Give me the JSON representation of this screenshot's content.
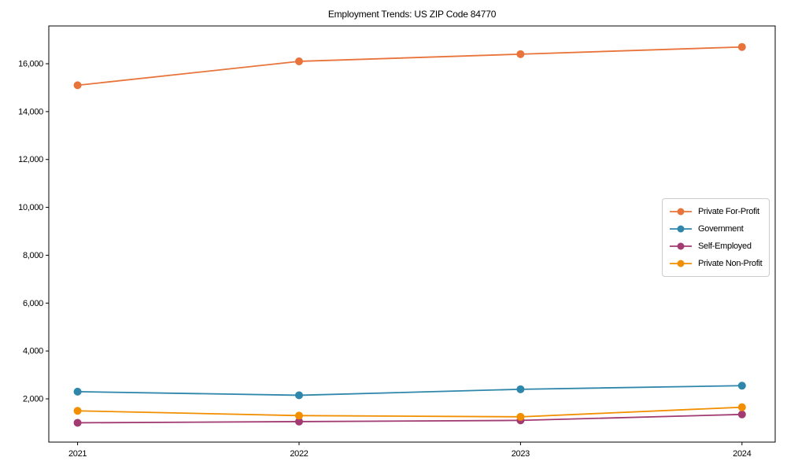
{
  "chart_data": {
    "type": "line",
    "title": "Employment Trends: US ZIP Code 84770",
    "x": [
      2021,
      2022,
      2023,
      2024
    ],
    "categories": [
      "2021",
      "2022",
      "2023",
      "2024"
    ],
    "series": [
      {
        "name": "Private For-Profit",
        "color": "#E8743B",
        "values": [
          15100,
          16100,
          16400,
          16700
        ]
      },
      {
        "name": "Government",
        "color": "#2E86AB",
        "values": [
          2300,
          2150,
          2400,
          2550
        ]
      },
      {
        "name": "Self-Employed",
        "color": "#A23B72",
        "values": [
          1000,
          1050,
          1100,
          1350
        ]
      },
      {
        "name": "Private Non-Profit",
        "color": "#F18F01",
        "values": [
          1500,
          1300,
          1250,
          1650
        ]
      }
    ],
    "xlabel": "",
    "ylabel": "",
    "yticks": [
      2000,
      4000,
      6000,
      8000,
      10000,
      12000,
      14000,
      16000
    ],
    "ylim": [
      193,
      17578
    ],
    "xlim": [
      2020.87,
      2024.15
    ],
    "grid": false,
    "legend_position": "center right",
    "axis_color": "#000000",
    "marker_radius": 5,
    "line_width": 1.8
  }
}
